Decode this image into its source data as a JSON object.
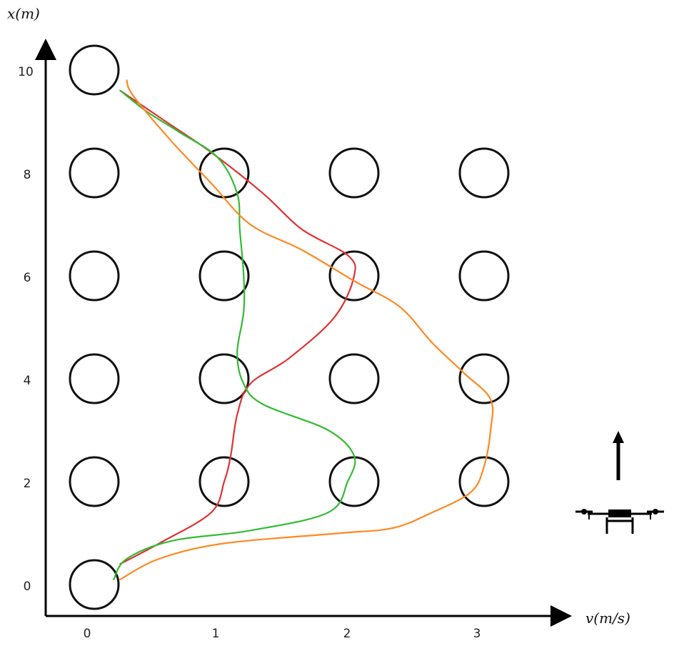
{
  "figure": {
    "x_axis_title": "v(m/s)",
    "y_axis_title": "x(m)",
    "x_ticks": [
      "0",
      "1",
      "2",
      "3"
    ],
    "y_ticks": [
      "0",
      "2",
      "4",
      "6",
      "8",
      "10"
    ]
  },
  "obstacles": [
    {
      "v": 0,
      "x": 10
    },
    {
      "v": 0,
      "x": 8
    },
    {
      "v": 1,
      "x": 8
    },
    {
      "v": 2,
      "x": 8
    },
    {
      "v": 3,
      "x": 8
    },
    {
      "v": 0,
      "x": 6
    },
    {
      "v": 1,
      "x": 6
    },
    {
      "v": 2,
      "x": 6
    },
    {
      "v": 3,
      "x": 6
    },
    {
      "v": 0,
      "x": 4
    },
    {
      "v": 1,
      "x": 4
    },
    {
      "v": 2,
      "x": 4
    },
    {
      "v": 3,
      "x": 4
    },
    {
      "v": 0,
      "x": 2
    },
    {
      "v": 1,
      "x": 2
    },
    {
      "v": 2,
      "x": 2
    },
    {
      "v": 3,
      "x": 2
    },
    {
      "v": 0,
      "x": 0
    }
  ],
  "trajectories": [
    {
      "color": "#dd3333",
      "points": [
        [
          0.2,
          0.4
        ],
        [
          0.5,
          0.8
        ],
        [
          0.9,
          1.4
        ],
        [
          1.0,
          2.0
        ],
        [
          1.05,
          2.5
        ],
        [
          1.1,
          3.3
        ],
        [
          1.2,
          3.9
        ],
        [
          1.5,
          4.4
        ],
        [
          1.85,
          5.2
        ],
        [
          2.0,
          6.0
        ],
        [
          1.95,
          6.4
        ],
        [
          1.6,
          6.9
        ],
        [
          1.3,
          7.6
        ],
        [
          0.9,
          8.4
        ],
        [
          0.55,
          9.0
        ],
        [
          0.2,
          9.6
        ]
      ]
    },
    {
      "color": "#33bb33",
      "points": [
        [
          0.15,
          0.1
        ],
        [
          0.25,
          0.5
        ],
        [
          0.6,
          0.85
        ],
        [
          1.2,
          1.05
        ],
        [
          1.8,
          1.4
        ],
        [
          1.95,
          2.0
        ],
        [
          2.0,
          2.5
        ],
        [
          1.8,
          3.0
        ],
        [
          1.3,
          3.5
        ],
        [
          1.15,
          3.9
        ],
        [
          1.1,
          4.5
        ],
        [
          1.15,
          5.3
        ],
        [
          1.15,
          6.0
        ],
        [
          1.12,
          6.9
        ],
        [
          1.1,
          7.6
        ],
        [
          0.95,
          8.3
        ],
        [
          0.65,
          8.8
        ],
        [
          0.4,
          9.2
        ],
        [
          0.2,
          9.6
        ]
      ]
    },
    {
      "color": "#ff8822",
      "points": [
        [
          0.2,
          0.1
        ],
        [
          0.5,
          0.5
        ],
        [
          1.0,
          0.8
        ],
        [
          1.9,
          1.0
        ],
        [
          2.3,
          1.1
        ],
        [
          2.6,
          1.4
        ],
        [
          2.9,
          1.8
        ],
        [
          3.0,
          2.3
        ],
        [
          3.05,
          3.0
        ],
        [
          3.05,
          3.6
        ],
        [
          2.85,
          4.1
        ],
        [
          2.6,
          4.7
        ],
        [
          2.35,
          5.4
        ],
        [
          2.0,
          5.9
        ],
        [
          1.6,
          6.5
        ],
        [
          1.2,
          7.0
        ],
        [
          0.9,
          7.8
        ],
        [
          0.6,
          8.6
        ],
        [
          0.3,
          9.5
        ],
        [
          0.25,
          9.8
        ]
      ]
    }
  ],
  "quadrotor": {
    "icon": "quadrotor-drone-icon",
    "direction": "up"
  }
}
